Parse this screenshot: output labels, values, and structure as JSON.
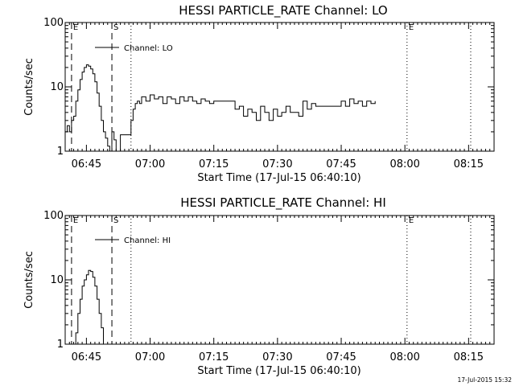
{
  "chart_data": [
    {
      "type": "line",
      "title": "HESSI PARTICLE_RATE Channel: LO",
      "xlabel": "Start Time (17-Jul-15 06:40:10)",
      "ylabel": "Counts/sec",
      "yscale": "log",
      "ylim": [
        1,
        100
      ],
      "y_ticks": [
        "1",
        "10",
        "100"
      ],
      "x_ticks": [
        "06:45",
        "07:00",
        "07:15",
        "07:30",
        "07:45",
        "08:00",
        "08:15"
      ],
      "x_tick_minutes": [
        5,
        20,
        35,
        50,
        65,
        80,
        95
      ],
      "xlim_minutes": [
        0,
        101
      ],
      "legend": "Channel: LO",
      "legend_position": "top-left",
      "markers": [
        {
          "label": "E",
          "minute": 1.5,
          "style": "dashed"
        },
        {
          "label": "S",
          "minute": 11,
          "style": "dashed"
        },
        {
          "label": "",
          "minute": 15.5,
          "style": "dotted"
        },
        {
          "label": "E",
          "minute": 80.5,
          "style": "dotted"
        },
        {
          "label": "",
          "minute": 95.5,
          "style": "dotted"
        }
      ],
      "series": [
        {
          "name": "Channel: LO",
          "x": [
            0,
            0.5,
            1,
            1.5,
            2,
            2.5,
            3,
            3.5,
            4,
            4.5,
            5,
            5.5,
            6,
            6.5,
            7,
            7.5,
            8,
            8.5,
            9,
            9.5,
            10,
            10.5,
            11,
            11.5,
            12,
            13,
            14,
            15,
            15.5,
            16,
            16.5,
            17,
            17.5,
            18,
            19,
            20,
            21,
            22,
            23,
            24,
            25,
            26,
            27,
            28,
            29,
            30,
            31,
            32,
            33,
            34,
            35,
            36,
            37,
            38,
            39,
            40,
            41,
            42,
            43,
            44,
            45,
            46,
            47,
            48,
            49,
            50,
            51,
            52,
            53,
            54,
            55,
            56,
            57,
            58,
            59,
            60,
            61,
            62,
            63,
            64,
            65,
            66,
            67,
            68,
            69,
            70,
            71,
            72,
            73
          ],
          "y": [
            2,
            2.5,
            2,
            3,
            3.5,
            6,
            9,
            13,
            17,
            20,
            22,
            21,
            19,
            16,
            12,
            8,
            5,
            3,
            2,
            1.6,
            1.2,
            1,
            2,
            1.5,
            1,
            1.8,
            1.8,
            1.8,
            3,
            4.5,
            5.5,
            6,
            5.5,
            7,
            6,
            7.5,
            6.5,
            7,
            5.5,
            7,
            6.5,
            5.5,
            7,
            6,
            7,
            6,
            5.5,
            6.5,
            6,
            5.5,
            6,
            6,
            6,
            6,
            6,
            4.5,
            5,
            3.5,
            4.5,
            4,
            3,
            5,
            4,
            3,
            4.5,
            3.5,
            4,
            5,
            4,
            4,
            3.5,
            6,
            4.5,
            5.5,
            5,
            5,
            5,
            5,
            5,
            5,
            6,
            5,
            6.5,
            5.5,
            6,
            5,
            6,
            5.5,
            6
          ]
        }
      ]
    },
    {
      "type": "line",
      "title": "HESSI PARTICLE_RATE Channel: HI",
      "xlabel": "Start Time (17-Jul-15 06:40:10)",
      "ylabel": "Counts/sec",
      "yscale": "log",
      "ylim": [
        1,
        100
      ],
      "y_ticks": [
        "1",
        "10",
        "100"
      ],
      "x_ticks": [
        "06:45",
        "07:00",
        "07:15",
        "07:30",
        "07:45",
        "08:00",
        "08:15"
      ],
      "x_tick_minutes": [
        5,
        20,
        35,
        50,
        65,
        80,
        95
      ],
      "xlim_minutes": [
        0,
        101
      ],
      "legend": "Channel: HI",
      "legend_position": "top-left",
      "markers": [
        {
          "label": "E",
          "minute": 1.5,
          "style": "dashed"
        },
        {
          "label": "S",
          "minute": 11,
          "style": "dashed"
        },
        {
          "label": "",
          "minute": 15.5,
          "style": "dotted"
        },
        {
          "label": "E",
          "minute": 80.5,
          "style": "dotted"
        },
        {
          "label": "",
          "minute": 95.5,
          "style": "dotted"
        }
      ],
      "series": [
        {
          "name": "Channel: HI",
          "x": [
            2,
            2.5,
            3,
            3.5,
            4,
            4.5,
            5,
            5.5,
            6,
            6.5,
            7,
            7.5,
            8,
            8.5,
            9
          ],
          "y": [
            1,
            1.5,
            3,
            5,
            8,
            10,
            12,
            14,
            13.5,
            11,
            8,
            5,
            3,
            1.8,
            1
          ]
        }
      ]
    }
  ],
  "footer": {
    "stamp": "17-Jul-2015 15:32"
  }
}
